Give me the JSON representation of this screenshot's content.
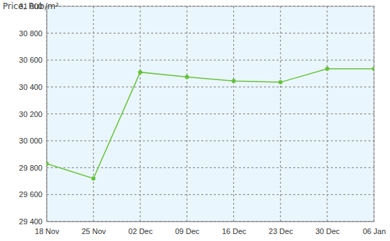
{
  "chart_data": {
    "type": "line",
    "y_label": "Price, Rub/m²",
    "categories": [
      "18 Nov",
      "25 Nov",
      "02 Dec",
      "09 Dec",
      "16 Dec",
      "23 Dec",
      "30 Dec",
      "06 Jan"
    ],
    "values": [
      29830,
      29720,
      30510,
      30475,
      30445,
      30435,
      30535,
      30535
    ],
    "color": "#66c23a",
    "marker": "circle",
    "ylim": [
      29400,
      31000
    ],
    "yticks": [
      {
        "value": 29400,
        "label": "29 400"
      },
      {
        "value": 29600,
        "label": "29 600"
      },
      {
        "value": 29800,
        "label": "29 800"
      },
      {
        "value": 30000,
        "label": "30 000"
      },
      {
        "value": 30200,
        "label": "30 200"
      },
      {
        "value": 30400,
        "label": "30 400"
      },
      {
        "value": 30600,
        "label": "30 600"
      },
      {
        "value": 30800,
        "label": "30 800"
      },
      {
        "value": 31000,
        "label": "31 000"
      }
    ],
    "grid": true
  }
}
